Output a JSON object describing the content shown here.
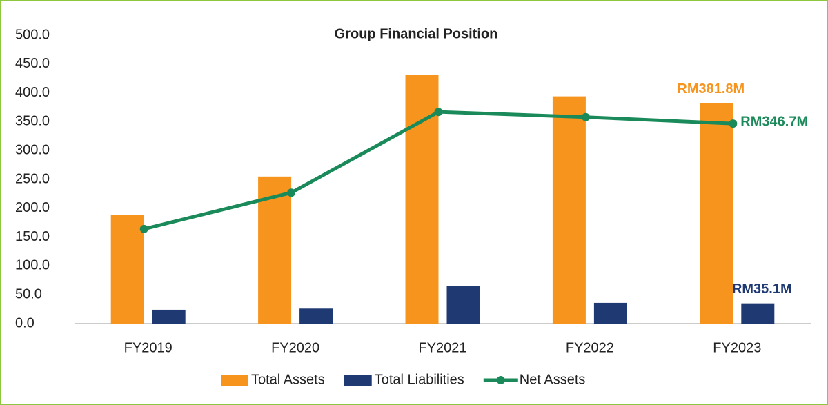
{
  "chart_data": {
    "type": "bar_line",
    "title": "Group Financial Position",
    "categories": [
      "FY2019",
      "FY2020",
      "FY2021",
      "FY2022",
      "FY2023"
    ],
    "series": [
      {
        "name": "Total Assets",
        "type": "bar",
        "color": "#f7941d",
        "values": [
          188,
          255,
          431,
          394,
          381.8
        ],
        "value_labels": [
          null,
          null,
          null,
          null,
          "RM381.8M"
        ]
      },
      {
        "name": "Total Liabilities",
        "type": "bar",
        "color": "#1f3a73",
        "values": [
          24,
          26,
          65,
          36,
          35.1
        ],
        "value_labels": [
          null,
          null,
          null,
          null,
          "RM35.1M"
        ]
      },
      {
        "name": "Net Assets",
        "type": "line",
        "color": "#1b8a5a",
        "values": [
          164,
          227,
          367,
          358,
          346.7
        ],
        "value_labels": [
          null,
          null,
          null,
          null,
          "RM346.7M"
        ]
      }
    ],
    "ylim": [
      0,
      500
    ],
    "yticks": [
      {
        "value": 0,
        "label": "0.0"
      },
      {
        "value": 50,
        "label": "50.0"
      },
      {
        "value": 100,
        "label": "100.0"
      },
      {
        "value": 150,
        "label": "150.0"
      },
      {
        "value": 200,
        "label": "200.0"
      },
      {
        "value": 250,
        "label": "250.0"
      },
      {
        "value": 300,
        "label": "300.0"
      },
      {
        "value": 350,
        "label": "350.0"
      },
      {
        "value": 400,
        "label": "400.0"
      },
      {
        "value": 450,
        "label": "450.0"
      },
      {
        "value": 500,
        "label": "500.0"
      }
    ],
    "grid": false,
    "legend": "bottom"
  }
}
